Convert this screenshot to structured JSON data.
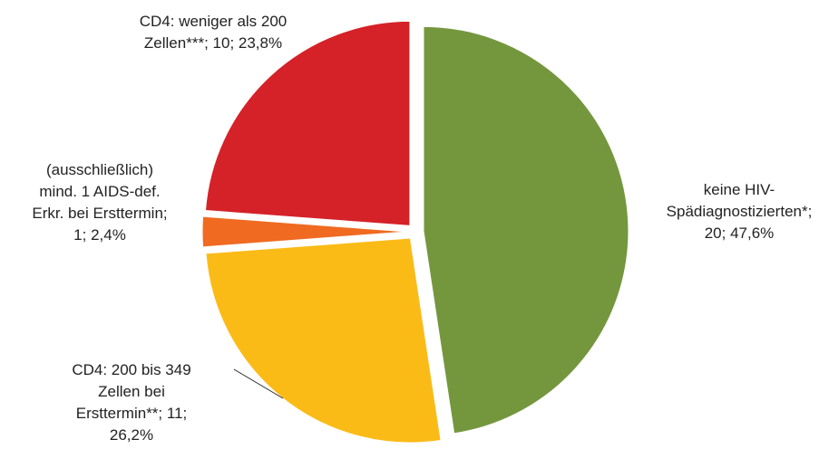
{
  "chart_data": {
    "type": "pie",
    "categories": [
      "keine HIV-Spädiagnostizierten*",
      "CD4: 200 bis 349 Zellen bei Ersttermin**",
      "(ausschließlich) mind. 1 AIDS-def. Erkr. bei Ersttermin",
      "CD4: weniger als 200 Zellen***"
    ],
    "values": [
      20,
      11,
      1,
      10
    ],
    "percent_labels": [
      "47,6%",
      "26,2%",
      "2,4%",
      "23,8%"
    ],
    "colors": [
      "#74973e",
      "#fbbb17",
      "#f06a22",
      "#d52128"
    ]
  }
}
